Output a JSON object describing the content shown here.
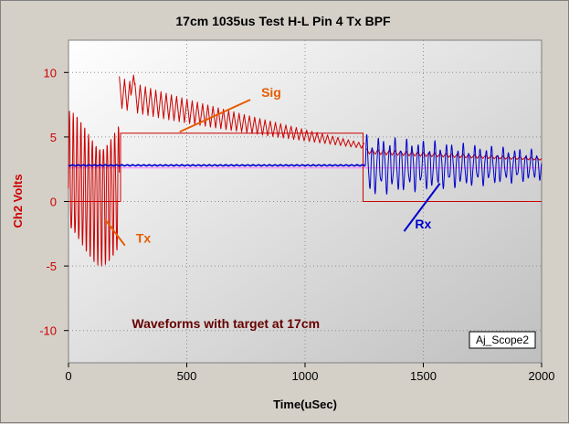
{
  "chart_data": {
    "type": "line",
    "title": "17cm 1035us Test H-L Pin 4 Tx BPF",
    "xlabel": "Time(uSec)",
    "ylabel": "Ch2 Volts",
    "xlim": [
      0,
      2000
    ],
    "ylim": [
      -12.5,
      12.5
    ],
    "x_ticks": [
      0,
      500,
      1000,
      1500,
      2000
    ],
    "y_ticks": [
      -10,
      -5,
      0,
      5,
      10
    ],
    "grid": true,
    "series": [
      {
        "name": "Tx",
        "color": "#cc0000",
        "style": "burst",
        "t_start": 0,
        "t_end": 215,
        "period": 16,
        "mean": 1,
        "amp_start": 6,
        "amp_end": 6,
        "phase": 0
      },
      {
        "name": "Tx",
        "color": "#cc0000",
        "style": "echo",
        "t_start": 215,
        "t_end": 1250,
        "period": 22,
        "mean_start": 8.5,
        "mean_end": 4.3,
        "amp_start": 1.2,
        "amp_end": 0.2,
        "peak": {
          "x": 275,
          "y": 9.8
        }
      },
      {
        "name": "Tx",
        "color": "#cc0000",
        "style": "echo",
        "t_start": 1260,
        "t_end": 2000,
        "period": 24,
        "mean_start": 3.9,
        "mean_end": 3.3,
        "amp_start": 0.2,
        "amp_end": 0.1
      },
      {
        "name": "Sig",
        "color": "#cc0000",
        "style": "steps",
        "points": [
          [
            0,
            0
          ],
          [
            220,
            0
          ],
          [
            220,
            5.3
          ],
          [
            1245,
            5.3
          ],
          [
            1245,
            0
          ],
          [
            2000,
            0
          ]
        ]
      },
      {
        "name": "Rx",
        "color": "#0000cc",
        "style": "noise",
        "t_start": 0,
        "t_end": 1255,
        "period": 10,
        "mean": 2.8,
        "amp_start": 0.08,
        "amp_end": 0.08
      },
      {
        "name": "Rx",
        "color": "#0000cc",
        "style": "burst",
        "t_start": 1255,
        "t_end": 2000,
        "period": 24,
        "mean": 2.8,
        "amp_start": 2.4,
        "amp_end": 1.2,
        "phase": 0
      }
    ],
    "reference_lines": [
      {
        "y": 2.6,
        "color": "#ff77ff"
      }
    ],
    "annotations": [
      {
        "text": "Sig",
        "color": "#e65c00",
        "x": 815,
        "y": 8.1,
        "arrow_to": [
          470,
          5.4
        ]
      },
      {
        "text": "Tx",
        "color": "#e65c00",
        "x": 285,
        "y": -3.2,
        "arrow_to": [
          155,
          -1.4
        ]
      },
      {
        "text": "Rx",
        "color": "#0000cc",
        "x": 1465,
        "y": -2.1,
        "arrow_to": [
          1570,
          1.4
        ]
      },
      {
        "text": "Waveforms with target at 17cm",
        "color": "#660000",
        "x": 665,
        "y": -9.8
      }
    ],
    "badge": "Aj_Scope2"
  }
}
